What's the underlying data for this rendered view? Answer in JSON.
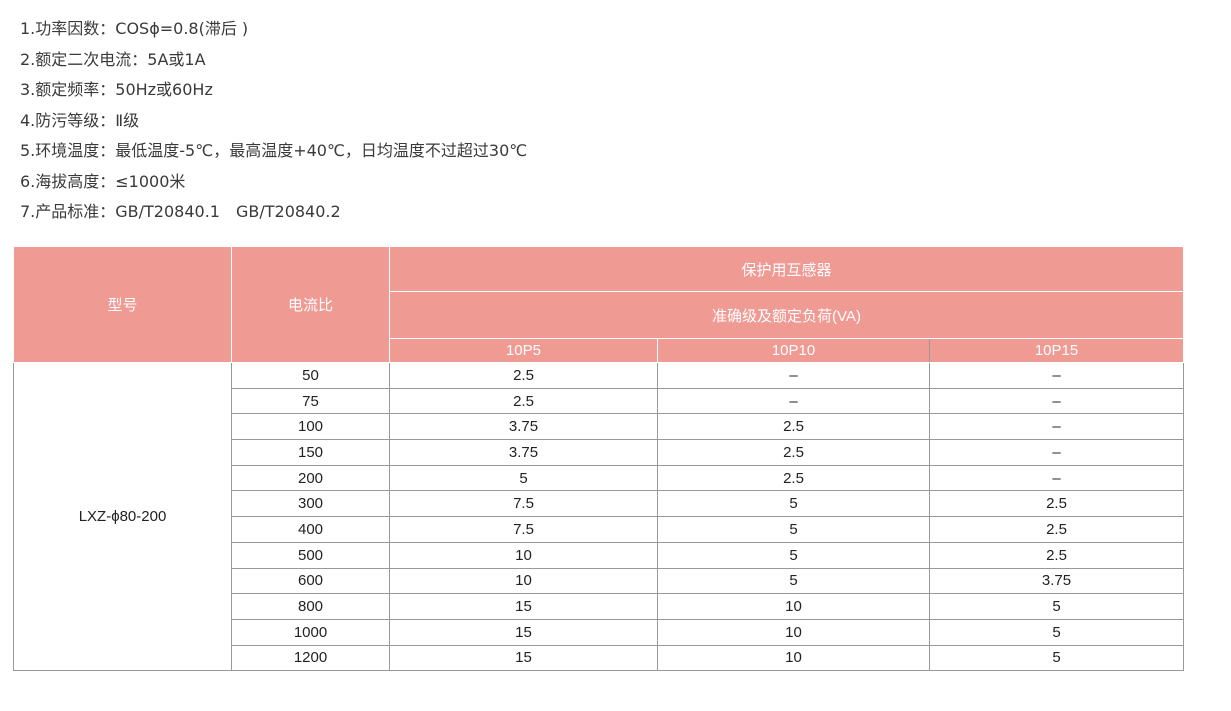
{
  "specs": [
    "1.功率因数：COSϕ=0.8(滞后 )",
    "2.额定二次电流：5A或1A",
    "3.额定频率：50Hz或60Hz",
    "4.防污等级：Ⅱ级",
    "5.环境温度：最低温度-5℃，最高温度+40℃，日均温度不过超过30℃",
    "6.海拔高度：≤1000米",
    "7.产品标准：GB/T20840.1　GB/T20840.2"
  ],
  "table": {
    "col_model": "型号",
    "col_ratio": "电流比",
    "group": "保护用互感器",
    "subgroup": "准确级及额定负荷(VA)",
    "classes": [
      "10P5",
      "10P10",
      "10P15"
    ],
    "model": "LXZ-ϕ80-200",
    "rows": [
      [
        "50",
        "2.5",
        "–",
        "–"
      ],
      [
        "75",
        "2.5",
        "–",
        "–"
      ],
      [
        "100",
        "3.75",
        "2.5",
        "–"
      ],
      [
        "150",
        "3.75",
        "2.5",
        "–"
      ],
      [
        "200",
        "5",
        "2.5",
        "–"
      ],
      [
        "300",
        "7.5",
        "5",
        "2.5"
      ],
      [
        "400",
        "7.5",
        "5",
        "2.5"
      ],
      [
        "500",
        "10",
        "5",
        "2.5"
      ],
      [
        "600",
        "10",
        "5",
        "3.75"
      ],
      [
        "800",
        "15",
        "10",
        "5"
      ],
      [
        "1000",
        "15",
        "10",
        "5"
      ],
      [
        "1200",
        "15",
        "10",
        "5"
      ]
    ]
  },
  "colors": {
    "header_bg": "#f09a94"
  }
}
